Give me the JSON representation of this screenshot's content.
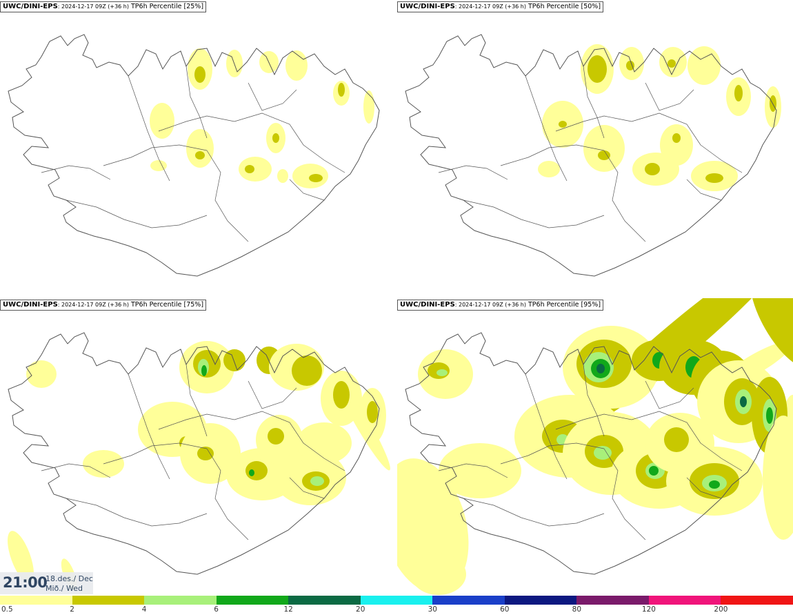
{
  "panels": [
    {
      "source": "UWC/DINI-EPS",
      "run": ": 2024-12-17 09Z (+36 h)",
      "variable": " TP6h Percentile [25%]",
      "percentile": 25
    },
    {
      "source": "UWC/DINI-EPS",
      "run": ": 2024-12-17 09Z (+36 h)",
      "variable": " TP6h Percentile [50%]",
      "percentile": 50
    },
    {
      "source": "UWC/DINI-EPS",
      "run": ": 2024-12-17 09Z (+36 h)",
      "variable": " TP6h Percentile [75%]",
      "percentile": 75
    },
    {
      "source": "UWC/DINI-EPS",
      "run": ": 2024-12-17 09Z (+36 h)",
      "variable": " TP6h Percentile [95%]",
      "percentile": 95
    }
  ],
  "valid_time": {
    "time": "21:00",
    "date_line1": "18.des./ Dec",
    "date_line2": "Mið./ Wed"
  },
  "legend": {
    "labels": [
      "0.5",
      "2",
      "4",
      "6",
      "12",
      "20",
      "30",
      "60",
      "80",
      "120",
      "200"
    ],
    "colors": [
      "#ffff99",
      "#c8c800",
      "#a8f07a",
      "#11a81a",
      "#0b6a43",
      "#19f0ee",
      "#1a3fc8",
      "#0c1880",
      "#7a1a6a",
      "#f0147a",
      "#f01515"
    ]
  },
  "colors": {
    "land_outline": "#555555",
    "level1": "#ffff99",
    "level2": "#c8c800",
    "level3": "#a8f07a",
    "level4": "#11a81a",
    "level5": "#0b6a43"
  }
}
